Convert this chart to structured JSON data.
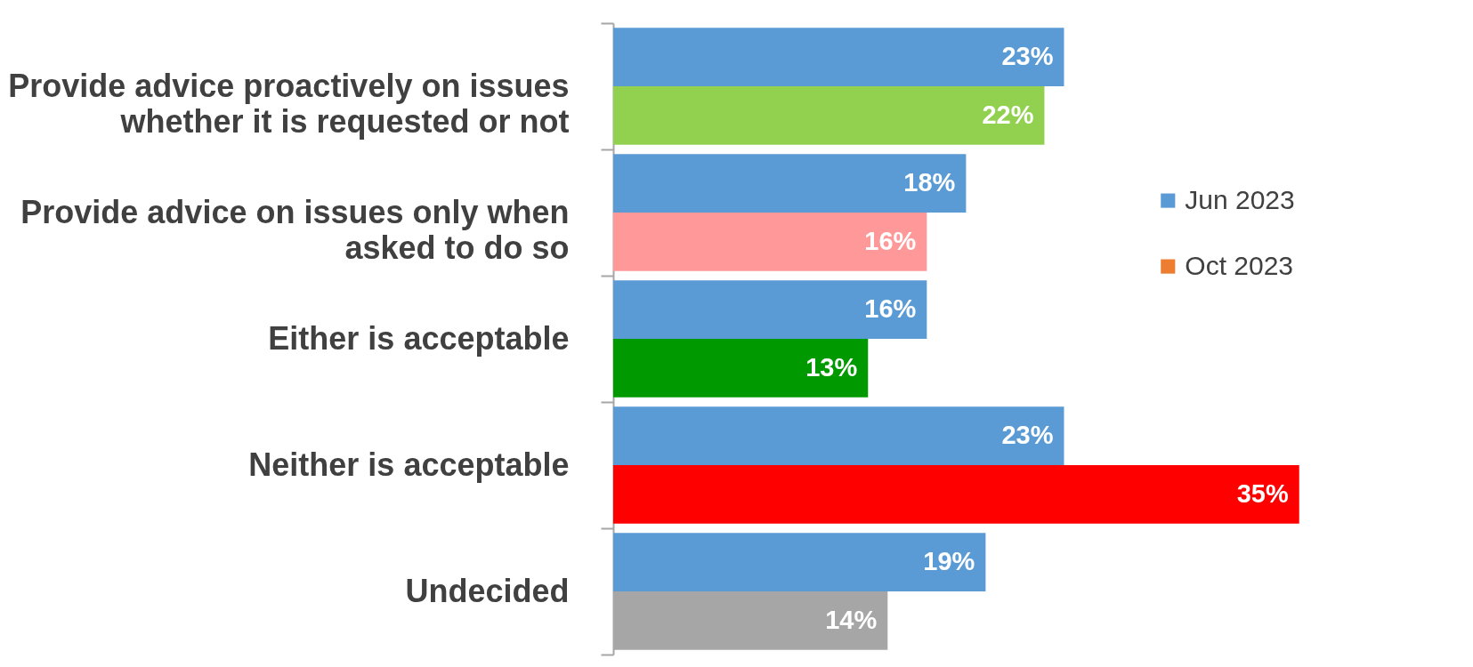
{
  "chart_data": {
    "type": "bar",
    "orientation": "horizontal",
    "categories": [
      "Provide advice proactively on issues whether it is requested or not",
      "Provide advice on issues only when asked to do so",
      "Either is acceptable",
      "Neither is acceptable",
      "Undecided"
    ],
    "series": [
      {
        "name": "Jun 2023",
        "color": "#5b9bd5",
        "values": [
          23,
          18,
          16,
          23,
          19
        ],
        "value_labels": [
          "23%",
          "18%",
          "16%",
          "23%",
          "19%"
        ]
      },
      {
        "name": "Oct 2023",
        "color": "#ed7d31",
        "colors": [
          "#92d050",
          "#ff9999",
          "#009900",
          "#ff0000",
          "#a6a6a6"
        ],
        "values": [
          22,
          16,
          13,
          35,
          14
        ],
        "value_labels": [
          "22%",
          "16%",
          "13%",
          "35%",
          "14%"
        ]
      }
    ],
    "legend": "right"
  }
}
